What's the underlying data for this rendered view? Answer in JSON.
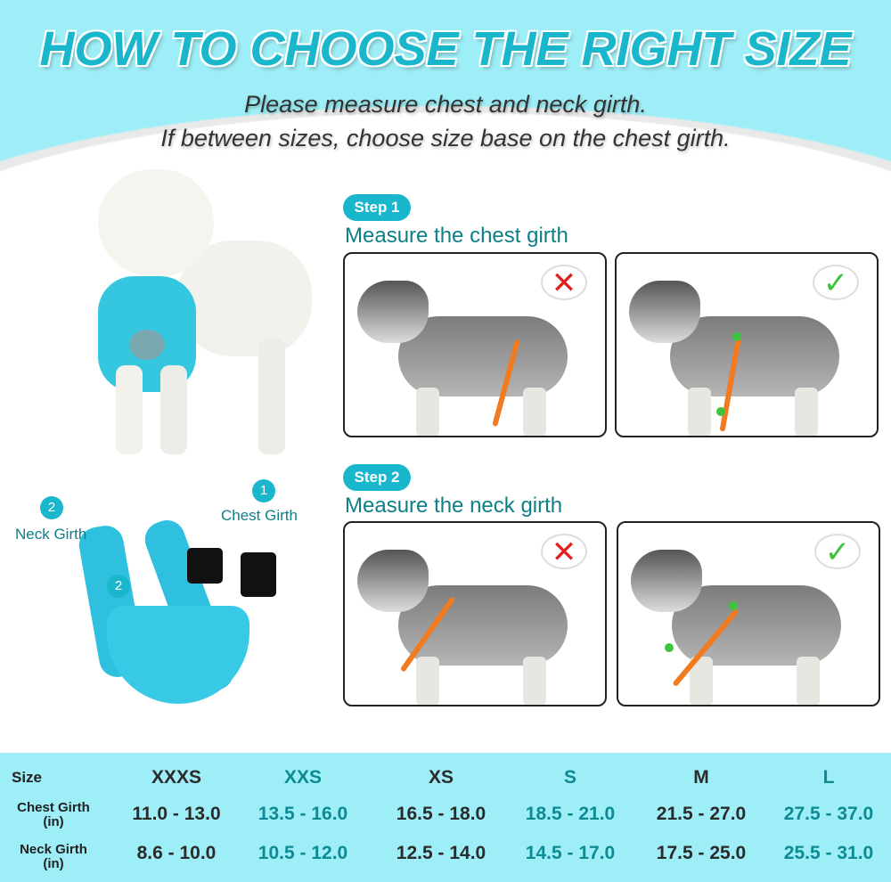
{
  "title": "HOW TO CHOOSE THE RIGHT SIZE",
  "subtitle": [
    "Please measure chest and neck girth.",
    "If between sizes, choose size base on the chest girth."
  ],
  "steps": [
    {
      "badge": "Step 1",
      "heading": "Measure the chest girth",
      "wrong_icon": "red-x-icon",
      "right_icon": "green-check-icon"
    },
    {
      "badge": "Step 2",
      "heading": "Measure the neck girth",
      "wrong_icon": "red-x-icon",
      "right_icon": "green-check-icon"
    }
  ],
  "harness_labels": {
    "chest_num": "1",
    "chest": "Chest Girth",
    "neck_num": "2",
    "neck": "Neck Girth",
    "neck_marker": "2"
  },
  "colors": {
    "accent": "#19b6cc",
    "heading": "#0d7f86",
    "table_bg": "#9eeef7",
    "strap": "#f07b21",
    "wrong": "#e02020",
    "right": "#3ec43e"
  },
  "size_table": {
    "row_labels": [
      "Size",
      "Chest Girth\n(in)",
      "Neck Girth\n(in)"
    ],
    "sizes": [
      "XXXS",
      "XXS",
      "XS",
      "S",
      "M",
      "L"
    ],
    "chest": [
      "11.0 - 13.0",
      "13.5 - 16.0",
      "16.5 - 18.0",
      "18.5 - 21.0",
      "21.5 - 27.0",
      "27.5 - 37.0"
    ],
    "neck": [
      "8.6 - 10.0",
      "10.5 - 12.0",
      "12.5 - 14.0",
      "14.5 - 17.0",
      "17.5 - 25.0",
      "25.5 - 31.0"
    ]
  }
}
